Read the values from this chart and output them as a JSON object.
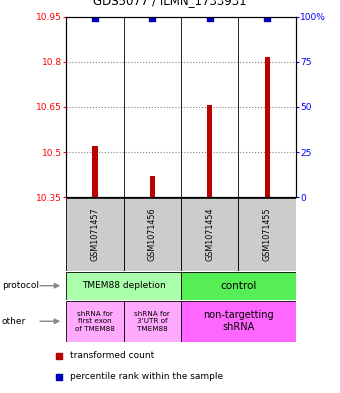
{
  "title": "GDS5077 / ILMN_1733931",
  "samples": [
    "GSM1071457",
    "GSM1071456",
    "GSM1071454",
    "GSM1071455"
  ],
  "bar_values": [
    10.52,
    10.42,
    10.655,
    10.815
  ],
  "bar_base": 10.35,
  "percentile_values": [
    99,
    99,
    99,
    99
  ],
  "ylim": [
    10.35,
    10.95
  ],
  "ylim_right": [
    0,
    100
  ],
  "yticks_left": [
    10.35,
    10.5,
    10.65,
    10.8,
    10.95
  ],
  "yticks_right": [
    0,
    25,
    50,
    75,
    100
  ],
  "ytick_labels_left": [
    "10.35",
    "10.5",
    "10.65",
    "10.8",
    "10.95"
  ],
  "ytick_labels_right": [
    "0",
    "25",
    "50",
    "75",
    "100%"
  ],
  "bar_color": "#bb0000",
  "dot_color": "#0000bb",
  "protocol_labels": [
    "TMEM88 depletion",
    "control"
  ],
  "protocol_colors": [
    "#aaffaa",
    "#55ee55"
  ],
  "other_labels": [
    "shRNA for\nfirst exon\nof TMEM88",
    "shRNA for\n3'UTR of\nTMEM88",
    "non-targetting\nshRNA"
  ],
  "other_colors": [
    "#ffaaff",
    "#ffaaff",
    "#ff66ff"
  ],
  "legend_bar_label": "transformed count",
  "legend_dot_label": "percentile rank within the sample",
  "sample_box_color": "#cccccc",
  "background_color": "#ffffff",
  "fig_width": 3.4,
  "fig_height": 3.93,
  "dpi": 100
}
